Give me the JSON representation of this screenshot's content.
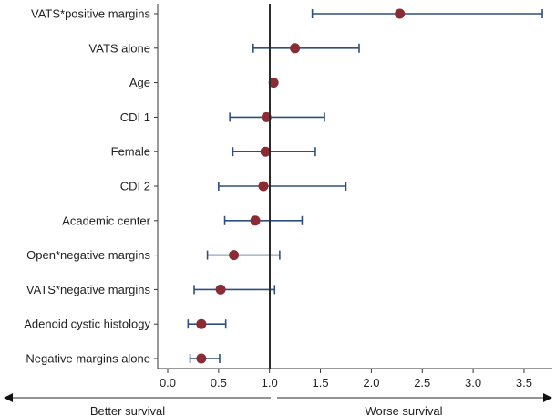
{
  "chart_data": {
    "type": "forest",
    "title": "",
    "xlabel": "",
    "xlim": [
      -0.05,
      3.75
    ],
    "xticks": [
      0.0,
      0.5,
      1.0,
      1.5,
      2.0,
      2.5,
      3.0,
      3.5
    ],
    "xtick_labels": [
      "0.0",
      "0.5",
      "1.0",
      "1.5",
      "2.0",
      "2.5",
      "3.0",
      "3.5"
    ],
    "reference_line": 1.0,
    "rows": [
      {
        "label": "VATS*positive margins",
        "estimate": 2.28,
        "lower": 1.42,
        "upper": 3.68
      },
      {
        "label": "VATS alone",
        "estimate": 1.25,
        "lower": 0.84,
        "upper": 1.88
      },
      {
        "label": "Age",
        "estimate": 1.04,
        "lower": 1.03,
        "upper": 1.05
      },
      {
        "label": "CDI 1",
        "estimate": 0.97,
        "lower": 0.61,
        "upper": 1.54
      },
      {
        "label": "Female",
        "estimate": 0.96,
        "lower": 0.64,
        "upper": 1.45
      },
      {
        "label": "CDI 2",
        "estimate": 0.94,
        "lower": 0.5,
        "upper": 1.75
      },
      {
        "label": "Academic center",
        "estimate": 0.86,
        "lower": 0.56,
        "upper": 1.32
      },
      {
        "label": "Open*negative margins",
        "estimate": 0.65,
        "lower": 0.39,
        "upper": 1.1
      },
      {
        "label": "VATS*negative margins",
        "estimate": 0.52,
        "lower": 0.26,
        "upper": 1.05
      },
      {
        "label": "Adenoid cystic histology",
        "estimate": 0.33,
        "lower": 0.2,
        "upper": 0.57
      },
      {
        "label": "Negative margins alone",
        "estimate": 0.33,
        "lower": 0.22,
        "upper": 0.51
      }
    ],
    "annotations": {
      "left_arrow": "Better survival",
      "right_arrow": "Worse survival"
    },
    "colors": {
      "point": "#8b2c35",
      "ci": "#2e4f7f",
      "axis": "#333333"
    }
  }
}
